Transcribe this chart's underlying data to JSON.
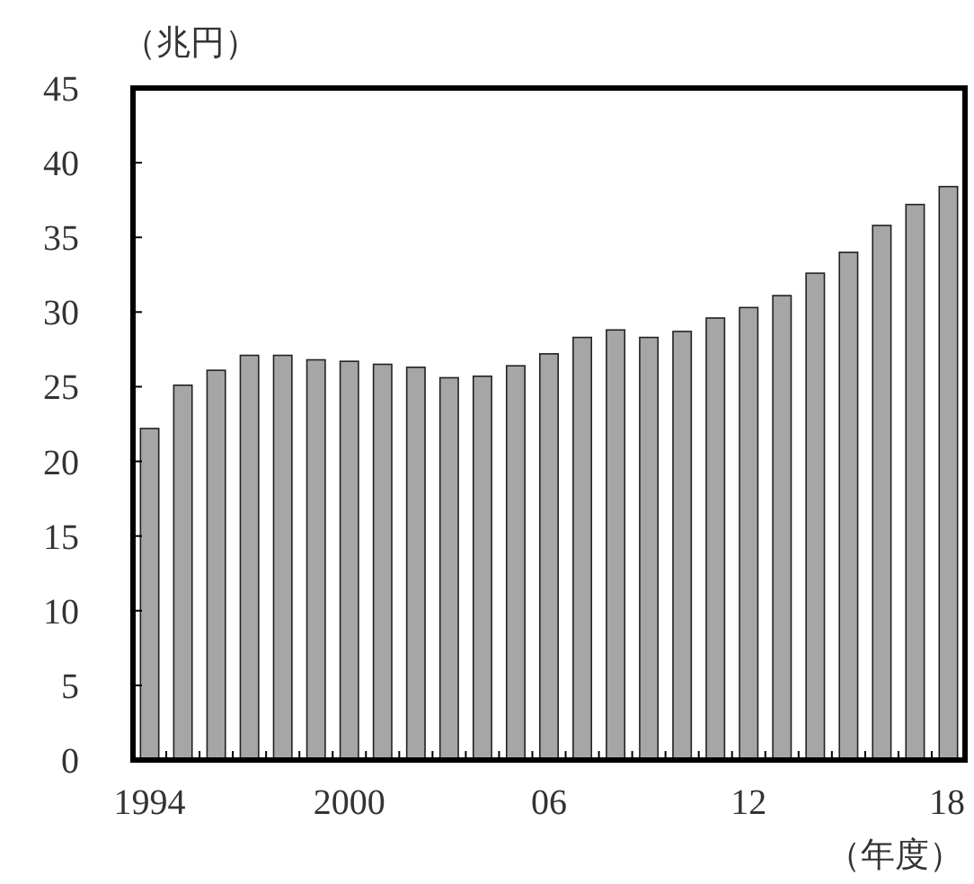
{
  "chart_data": {
    "type": "bar",
    "ylabel": "（兆円）",
    "xlabel": "（年度）",
    "categories": [
      "1994",
      null,
      null,
      null,
      null,
      null,
      "2000",
      null,
      null,
      null,
      null,
      null,
      "06",
      null,
      null,
      null,
      null,
      null,
      "12",
      null,
      null,
      null,
      null,
      null,
      "18"
    ],
    "values": [
      22.2,
      25.1,
      26.1,
      27.1,
      27.1,
      26.8,
      26.7,
      26.5,
      26.3,
      25.6,
      25.7,
      26.4,
      27.2,
      28.3,
      28.8,
      28.3,
      28.7,
      29.6,
      30.3,
      31.1,
      32.6,
      34.0,
      35.8,
      37.2,
      38.4
    ],
    "color": "#a6a6a6",
    "ylim": [
      0,
      45
    ],
    "yticks": [
      0,
      5,
      10,
      15,
      20,
      25,
      30,
      35,
      40,
      45
    ],
    "grid": false
  }
}
